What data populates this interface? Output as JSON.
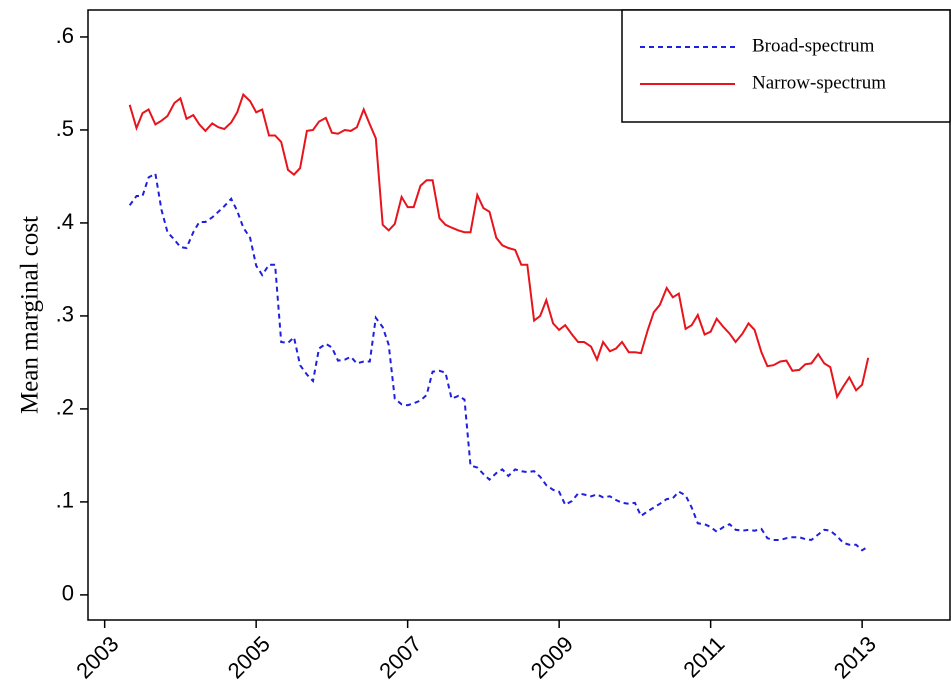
{
  "chart_data": {
    "type": "line",
    "y_label": "Mean marginal cost",
    "x": [
      2003.33,
      2003.42,
      2003.5,
      2003.58,
      2003.67,
      2003.75,
      2003.83,
      2003.92,
      2004,
      2004.08,
      2004.17,
      2004.25,
      2004.33,
      2004.42,
      2004.5,
      2004.58,
      2004.67,
      2004.75,
      2004.83,
      2004.92,
      2005,
      2005.08,
      2005.17,
      2005.25,
      2005.33,
      2005.42,
      2005.5,
      2005.58,
      2005.67,
      2005.75,
      2005.83,
      2005.92,
      2006,
      2006.08,
      2006.17,
      2006.25,
      2006.33,
      2006.42,
      2006.5,
      2006.58,
      2006.67,
      2006.75,
      2006.83,
      2006.92,
      2007,
      2007.08,
      2007.17,
      2007.25,
      2007.33,
      2007.42,
      2007.5,
      2007.58,
      2007.67,
      2007.75,
      2007.83,
      2007.92,
      2008,
      2008.08,
      2008.17,
      2008.25,
      2008.33,
      2008.42,
      2008.5,
      2008.58,
      2008.67,
      2008.75,
      2008.83,
      2008.92,
      2009,
      2009.08,
      2009.17,
      2009.25,
      2009.33,
      2009.42,
      2009.5,
      2009.58,
      2009.67,
      2009.75,
      2009.83,
      2009.92,
      2010,
      2010.08,
      2010.17,
      2010.25,
      2010.33,
      2010.42,
      2010.5,
      2010.58,
      2010.67,
      2010.75,
      2010.83,
      2010.92,
      2011,
      2011.08,
      2011.17,
      2011.25,
      2011.33,
      2011.42,
      2011.5,
      2011.58,
      2011.67,
      2011.75,
      2011.83,
      2011.92,
      2012,
      2012.08,
      2012.17,
      2012.25,
      2012.33,
      2012.42,
      2012.5,
      2012.58,
      2012.67,
      2012.75,
      2012.83,
      2012.92,
      2013,
      2013.08
    ],
    "series": [
      {
        "name": "Broad-spectrum",
        "color": "#1f1fe0",
        "dash": true,
        "values": [
          0.419,
          0.429,
          0.429,
          0.449,
          0.453,
          0.414,
          0.39,
          0.382,
          0.374,
          0.373,
          0.39,
          0.401,
          0.401,
          0.406,
          0.412,
          0.418,
          0.426,
          0.413,
          0.395,
          0.384,
          0.354,
          0.344,
          0.355,
          0.355,
          0.272,
          0.271,
          0.277,
          0.247,
          0.237,
          0.23,
          0.265,
          0.27,
          0.266,
          0.252,
          0.253,
          0.256,
          0.249,
          0.251,
          0.251,
          0.298,
          0.288,
          0.269,
          0.211,
          0.205,
          0.204,
          0.206,
          0.209,
          0.215,
          0.24,
          0.241,
          0.239,
          0.211,
          0.214,
          0.21,
          0.139,
          0.137,
          0.13,
          0.124,
          0.131,
          0.135,
          0.128,
          0.135,
          0.133,
          0.132,
          0.133,
          0.127,
          0.118,
          0.113,
          0.111,
          0.097,
          0.101,
          0.109,
          0.108,
          0.106,
          0.108,
          0.105,
          0.106,
          0.102,
          0.099,
          0.098,
          0.099,
          0.085,
          0.09,
          0.094,
          0.098,
          0.103,
          0.104,
          0.111,
          0.107,
          0.094,
          0.077,
          0.076,
          0.073,
          0.068,
          0.073,
          0.076,
          0.07,
          0.069,
          0.07,
          0.069,
          0.071,
          0.061,
          0.059,
          0.059,
          0.061,
          0.062,
          0.062,
          0.06,
          0.059,
          0.065,
          0.07,
          0.069,
          0.063,
          0.056,
          0.054,
          0.054,
          0.048,
          0.052
        ]
      },
      {
        "name": "Narrow-spectrum",
        "color": "#e8141c",
        "dash": false,
        "values": [
          0.527,
          0.502,
          0.518,
          0.522,
          0.506,
          0.51,
          0.515,
          0.529,
          0.534,
          0.512,
          0.516,
          0.506,
          0.499,
          0.507,
          0.503,
          0.501,
          0.508,
          0.519,
          0.538,
          0.531,
          0.519,
          0.522,
          0.494,
          0.494,
          0.487,
          0.457,
          0.452,
          0.459,
          0.499,
          0.5,
          0.509,
          0.513,
          0.497,
          0.496,
          0.5,
          0.499,
          0.503,
          0.522,
          0.506,
          0.491,
          0.398,
          0.392,
          0.399,
          0.428,
          0.417,
          0.417,
          0.44,
          0.446,
          0.446,
          0.405,
          0.398,
          0.395,
          0.392,
          0.39,
          0.39,
          0.43,
          0.416,
          0.412,
          0.384,
          0.376,
          0.373,
          0.371,
          0.355,
          0.355,
          0.295,
          0.3,
          0.317,
          0.292,
          0.285,
          0.29,
          0.28,
          0.272,
          0.272,
          0.267,
          0.253,
          0.272,
          0.262,
          0.265,
          0.272,
          0.261,
          0.261,
          0.26,
          0.285,
          0.304,
          0.312,
          0.33,
          0.32,
          0.324,
          0.286,
          0.29,
          0.301,
          0.28,
          0.283,
          0.297,
          0.288,
          0.281,
          0.272,
          0.281,
          0.292,
          0.285,
          0.261,
          0.246,
          0.247,
          0.251,
          0.252,
          0.241,
          0.242,
          0.248,
          0.249,
          0.259,
          0.249,
          0.245,
          0.213,
          0.224,
          0.234,
          0.22,
          0.226,
          0.255
        ]
      }
    ],
    "xlim": [
      2002.78,
      2014.16
    ],
    "xticks": [
      2003,
      2005,
      2007,
      2009,
      2011,
      2013
    ],
    "ylim": [
      -0.027,
      0.629
    ],
    "yticks": [
      0,
      {
        "value": 0.1,
        "label": ".1"
      },
      {
        "value": 0.2,
        "label": ".2"
      },
      {
        "value": 0.3,
        "label": ".3"
      },
      {
        "value": 0.4,
        "label": ".4"
      },
      {
        "value": 0.5,
        "label": ".5"
      },
      {
        "value": 0.6,
        "label": ".6"
      }
    ],
    "legend": "top-right"
  }
}
